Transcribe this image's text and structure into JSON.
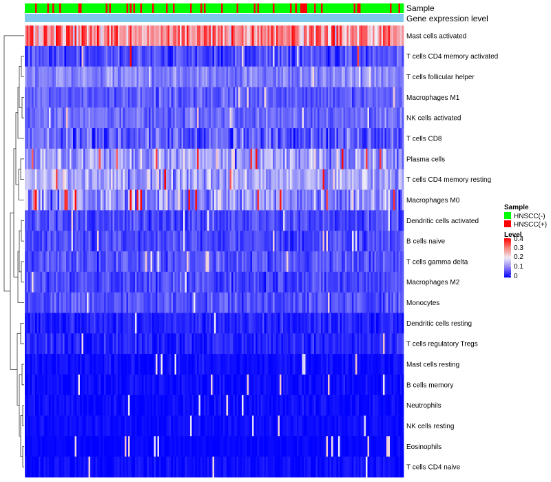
{
  "chart_data": {
    "type": "heatmap",
    "annotations": {
      "sample_label": "Sample",
      "level_label": "Gene expression level"
    },
    "rows": [
      {
        "label": "Mast cells activated",
        "mean": 0.28,
        "sd": 0.09,
        "hot": 0.12
      },
      {
        "label": "T cells CD4 memory activated",
        "mean": 0.06,
        "sd": 0.05,
        "hot": 0.01
      },
      {
        "label": "T cells follicular helper",
        "mean": 0.11,
        "sd": 0.04,
        "hot": 0.0
      },
      {
        "label": "Macrophages M1",
        "mean": 0.08,
        "sd": 0.04,
        "hot": 0.0
      },
      {
        "label": "NK cells activated",
        "mean": 0.09,
        "sd": 0.04,
        "hot": 0.0
      },
      {
        "label": "T cells CD8",
        "mean": 0.08,
        "sd": 0.06,
        "hot": 0.0
      },
      {
        "label": "Plasma cells",
        "mean": 0.13,
        "sd": 0.07,
        "hot": 0.04
      },
      {
        "label": "T cells CD4 memory resting",
        "mean": 0.14,
        "sd": 0.06,
        "hot": 0.02
      },
      {
        "label": "Macrophages M0",
        "mean": 0.12,
        "sd": 0.07,
        "hot": 0.03
      },
      {
        "label": "Dendritic cells activated",
        "mean": 0.06,
        "sd": 0.04,
        "hot": 0.0
      },
      {
        "label": "B cells naive",
        "mean": 0.06,
        "sd": 0.04,
        "hot": 0.0
      },
      {
        "label": "T cells gamma delta",
        "mean": 0.07,
        "sd": 0.04,
        "hot": 0.0
      },
      {
        "label": "Macrophages M2",
        "mean": 0.06,
        "sd": 0.04,
        "hot": 0.0
      },
      {
        "label": "Monocytes",
        "mean": 0.07,
        "sd": 0.04,
        "hot": 0.0
      },
      {
        "label": "Dendritic cells resting",
        "mean": 0.03,
        "sd": 0.03,
        "hot": 0.0
      },
      {
        "label": "T cells regulatory  Tregs",
        "mean": 0.03,
        "sd": 0.03,
        "hot": 0.0
      },
      {
        "label": "Mast cells resting",
        "mean": 0.01,
        "sd": 0.02,
        "hot": 0.0
      },
      {
        "label": "B cells memory",
        "mean": 0.01,
        "sd": 0.02,
        "hot": 0.0
      },
      {
        "label": "Neutrophils",
        "mean": 0.01,
        "sd": 0.02,
        "hot": 0.0
      },
      {
        "label": "NK cells resting",
        "mean": 0.01,
        "sd": 0.015,
        "hot": 0.0
      },
      {
        "label": "Eosinophils",
        "mean": 0.005,
        "sd": 0.01,
        "hot": 0.0
      },
      {
        "label": "T cells CD4 naive",
        "mean": 0.01,
        "sd": 0.02,
        "hot": 0.0
      }
    ],
    "n_samples": 220,
    "sample_groups": [
      "HNSCC(-)",
      "HNSCC(+)"
    ],
    "positive_fraction": 0.22,
    "value_range": [
      0,
      0.4
    ],
    "colorscale": {
      "low": "#0000ff",
      "mid": "#f0ecf7",
      "high": "#ff0000",
      "mid_value": 0.2
    },
    "annotation_colors": {
      "HNSCC(-)": "#00ff00",
      "HNSCC(+)": "#ff0000",
      "level": "#7ec8f0"
    },
    "legend": {
      "sample_title": "Sample",
      "sample_items": [
        {
          "label": "HNSCC(-)",
          "color": "#00ff00"
        },
        {
          "label": "HNSCC(+)",
          "color": "#ff0000"
        }
      ],
      "level_title": "Level",
      "level_ticks": [
        "0.4",
        "0.3",
        "0.2",
        "0.1",
        "0"
      ]
    }
  }
}
